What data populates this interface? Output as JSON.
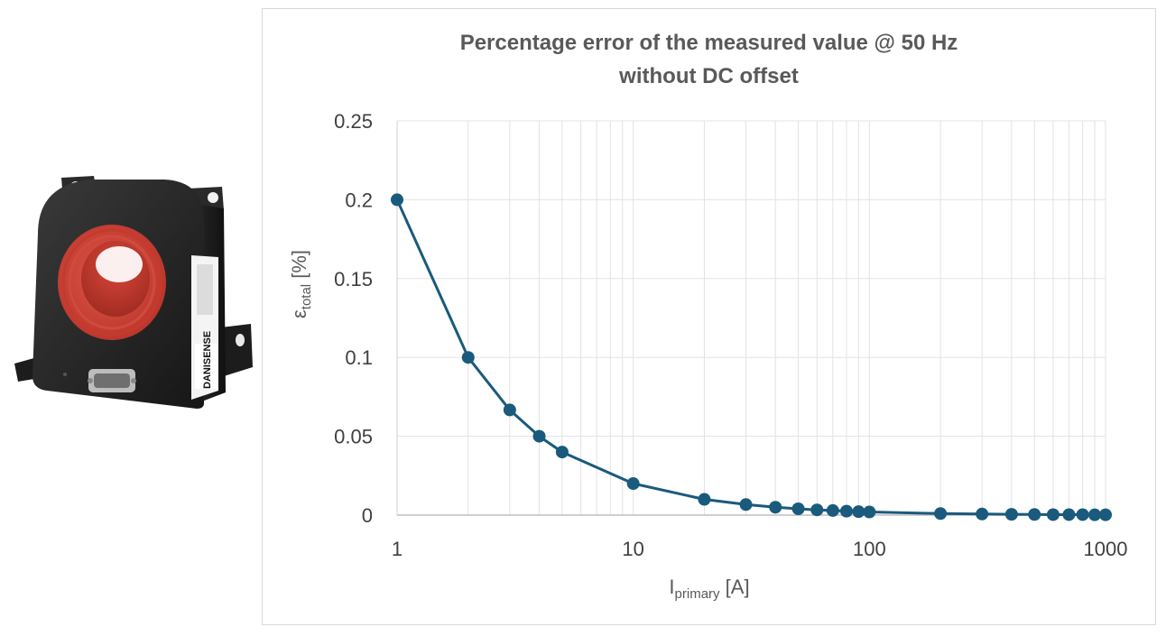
{
  "chart_data": {
    "type": "line",
    "title_line1": "Percentage error of the measured value @ 50 Hz",
    "title_line2": "without DC offset",
    "xlabel_main": "I",
    "xlabel_sub": "primary",
    "xlabel_unit": " [A]",
    "ylabel_main": "ε",
    "ylabel_sub": "total",
    "ylabel_unit": " [%]",
    "xscale": "log",
    "xlim": [
      1,
      1000
    ],
    "ylim": [
      0,
      0.25
    ],
    "x_tick_labels": [
      "1",
      "10",
      "100",
      "1000"
    ],
    "y_tick_labels": [
      "0",
      "0.05",
      "0.1",
      "0.15",
      "0.2",
      "0.25"
    ],
    "grid": true,
    "series": [
      {
        "name": "εtotal",
        "color": "#1a5a7c",
        "x": [
          1,
          2,
          3,
          4,
          5,
          10,
          20,
          30,
          40,
          50,
          60,
          70,
          80,
          90,
          100,
          200,
          300,
          400,
          500,
          600,
          700,
          800,
          900,
          1000
        ],
        "y": [
          0.2,
          0.1,
          0.0667,
          0.05,
          0.04,
          0.02,
          0.01,
          0.0067,
          0.005,
          0.004,
          0.0033,
          0.0029,
          0.0025,
          0.0022,
          0.002,
          0.001,
          0.0007,
          0.0005,
          0.0004,
          0.0003,
          0.0003,
          0.0003,
          0.0002,
          0.0002
        ]
      }
    ]
  },
  "product_image": {
    "brand_label": "DANISENSE",
    "description": "current transducer"
  }
}
